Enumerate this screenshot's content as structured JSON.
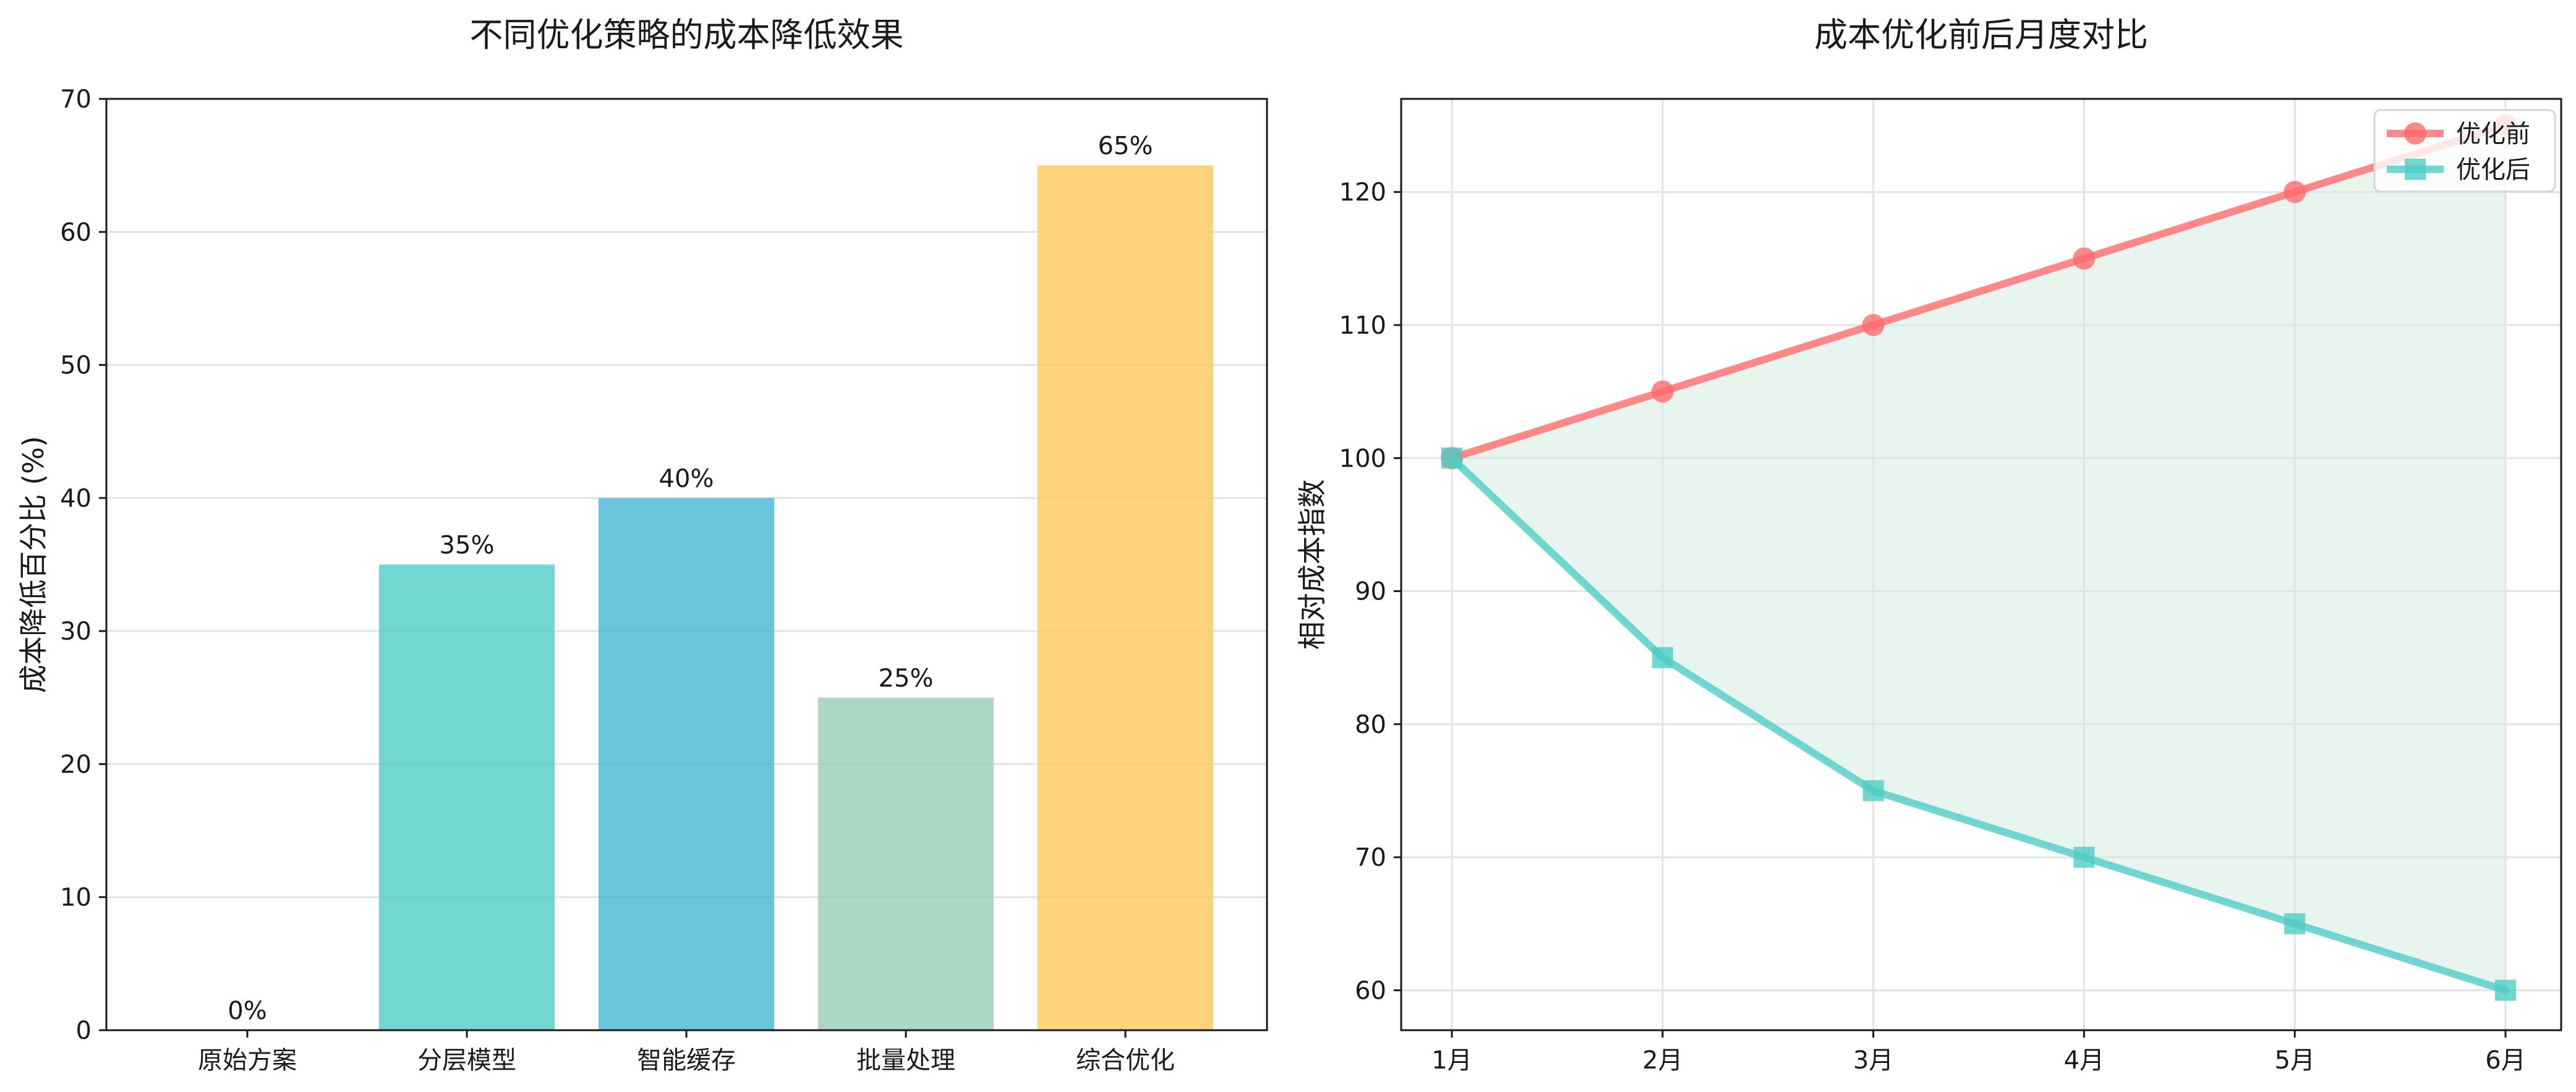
{
  "chart_data": [
    {
      "type": "bar",
      "title": "不同优化策略的成本降低效果",
      "xlabel": "",
      "ylabel": "成本降低百分比 (%)",
      "ylim": [
        0,
        70
      ],
      "yticks": [
        0,
        10,
        20,
        30,
        40,
        50,
        60,
        70
      ],
      "grid": "y",
      "categories": [
        "原始方案",
        "分层模型",
        "智能缓存",
        "批量处理",
        "综合优化"
      ],
      "values": [
        0,
        35,
        40,
        25,
        65
      ],
      "data_labels": [
        "0%",
        "35%",
        "40%",
        "25%",
        "65%"
      ],
      "colors": [
        "#ff6b6b",
        "#4ecdc4",
        "#45b7d1",
        "#96ceb4",
        "#ffc857"
      ]
    },
    {
      "type": "line",
      "title": "成本优化前后月度对比",
      "xlabel": "",
      "ylabel": "相对成本指数",
      "ylim": [
        57,
        127
      ],
      "yticks": [
        60,
        70,
        80,
        90,
        100,
        110,
        120
      ],
      "grid": "both",
      "legend": "top-right",
      "x": [
        "1月",
        "2月",
        "3月",
        "4月",
        "5月",
        "6月"
      ],
      "series": [
        {
          "name": "优化前",
          "values": [
            100,
            105,
            110,
            115,
            120,
            125
          ],
          "color": "#ff6b6b",
          "marker": "circle"
        },
        {
          "name": "优化后",
          "values": [
            100,
            85,
            75,
            70,
            65,
            60
          ],
          "color": "#4ecdc4",
          "marker": "square"
        }
      ],
      "fill_between": {
        "color": "#d2eadd"
      }
    }
  ]
}
